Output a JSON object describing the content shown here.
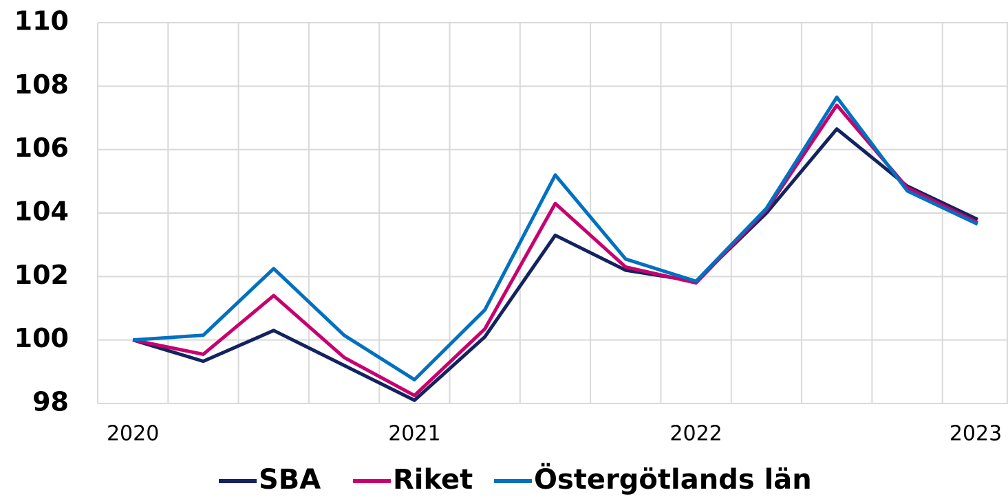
{
  "chart_data": {
    "type": "line",
    "categories": [
      "2020",
      null,
      null,
      null,
      "2021",
      null,
      null,
      null,
      "2022",
      null,
      null,
      null,
      "2023"
    ],
    "series": [
      {
        "name": "SBA",
        "color": "#14235f",
        "values": [
          100,
          99.33,
          100.3,
          99.2,
          98.1,
          100.1,
          103.3,
          102.2,
          101.85,
          104.0,
          106.65,
          104.85,
          103.8
        ]
      },
      {
        "name": "Riket",
        "color": "#c8006e",
        "values": [
          100,
          99.55,
          101.4,
          99.45,
          98.25,
          100.35,
          104.3,
          102.3,
          101.8,
          104.1,
          107.4,
          104.8,
          103.7
        ]
      },
      {
        "name": "Östergötlands län",
        "color": "#0070c0",
        "values": [
          100,
          100.15,
          102.25,
          100.15,
          98.75,
          100.95,
          105.2,
          102.55,
          101.85,
          104.15,
          107.65,
          104.7,
          103.65
        ]
      }
    ],
    "ylim": [
      98,
      110
    ],
    "yticks": [
      98,
      100,
      102,
      104,
      106,
      108,
      110
    ],
    "grid": true,
    "legend": "bottom"
  }
}
